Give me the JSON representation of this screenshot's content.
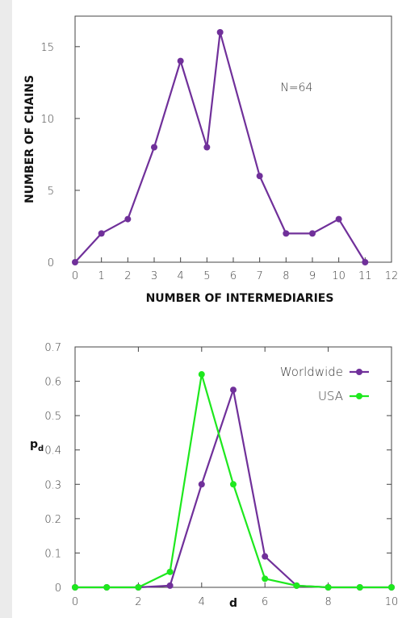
{
  "colors": {
    "worldwide": "#70309a",
    "usa": "#1ee81e",
    "axis": "#444444"
  },
  "chart_data": [
    {
      "type": "line",
      "title": "",
      "xlabel": "NUMBER OF INTERMEDIARIES",
      "ylabel": "NUMBER OF CHAINS",
      "annotation": "N=64",
      "xlim": [
        0,
        12
      ],
      "ylim": [
        0,
        16
      ],
      "x_ticks": [
        0,
        1,
        2,
        3,
        4,
        5,
        6,
        7,
        8,
        9,
        10,
        11,
        12
      ],
      "y_ticks": [
        0,
        5,
        10,
        15
      ],
      "series": [
        {
          "color": "#70309a",
          "x": [
            0,
            1,
            2,
            3,
            4,
            5,
            5.5,
            7,
            8,
            9,
            10,
            11
          ],
          "y": [
            0,
            2,
            3,
            8,
            14,
            8,
            16,
            6,
            2,
            2,
            3,
            0
          ]
        }
      ]
    },
    {
      "type": "line",
      "title": "",
      "xlabel": "d",
      "ylabel": "p_d",
      "ylabel_main": "p",
      "ylabel_sub": "d",
      "xlim": [
        0,
        10
      ],
      "ylim": [
        0,
        0.7
      ],
      "x_ticks": [
        0,
        2,
        4,
        6,
        8,
        10
      ],
      "y_ticks": [
        0,
        0.1,
        0.2,
        0.3,
        0.4,
        0.5,
        0.6,
        0.7
      ],
      "y_tick_labels": [
        "0",
        "0.1",
        "0.2",
        "0.3",
        "0.4",
        "0.5",
        "0.6",
        "0.7"
      ],
      "legend_position": "top-right",
      "series": [
        {
          "name": "Worldwide",
          "color": "#70309a",
          "x": [
            0,
            1,
            2,
            3,
            4,
            5,
            6,
            7,
            8,
            9,
            10
          ],
          "y": [
            0,
            0,
            0,
            0.005,
            0.3,
            0.575,
            0.09,
            0.005,
            0,
            0,
            0
          ]
        },
        {
          "name": "USA",
          "color": "#1ee81e",
          "x": [
            0,
            1,
            2,
            3,
            4,
            5,
            6,
            7,
            8,
            9,
            10
          ],
          "y": [
            0,
            0,
            0,
            0.045,
            0.62,
            0.3,
            0.025,
            0.005,
            0,
            0,
            0
          ]
        }
      ]
    }
  ]
}
